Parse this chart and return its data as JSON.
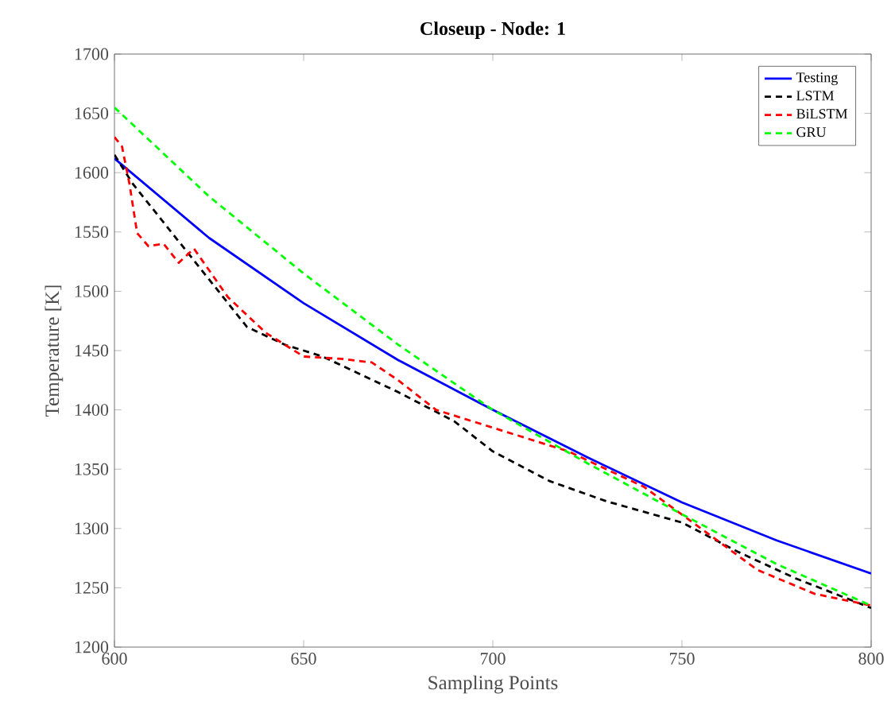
{
  "chart_data": {
    "type": "line",
    "title": "Closeup - Node: 1",
    "xlabel": "Sampling Points",
    "ylabel": "Temperature [K]",
    "xlim": [
      600,
      800
    ],
    "ylim": [
      1200,
      1700
    ],
    "xticks": [
      600,
      650,
      700,
      750,
      800
    ],
    "yticks": [
      1200,
      1250,
      1300,
      1350,
      1400,
      1450,
      1500,
      1550,
      1600,
      1650,
      1700
    ],
    "legend": "top right",
    "grid": false,
    "series": [
      {
        "name": "Testing",
        "color": "#0000ff",
        "line_style": "solid",
        "x": [
          600,
          625,
          650,
          675,
          700,
          725,
          750,
          775,
          800
        ],
        "values": [
          1612,
          1545,
          1490,
          1442,
          1400,
          1360,
          1322,
          1290,
          1262
        ]
      },
      {
        "name": "LSTM",
        "color": "#000000",
        "line_style": "dashed",
        "x": [
          600,
          605,
          615,
          625,
          635,
          645,
          655,
          665,
          675,
          690,
          700,
          715,
          730,
          750,
          765,
          780,
          800
        ],
        "values": [
          1615,
          1590,
          1550,
          1510,
          1470,
          1455,
          1445,
          1430,
          1415,
          1390,
          1365,
          1340,
          1323,
          1305,
          1280,
          1258,
          1233
        ]
      },
      {
        "name": "BiLSTM",
        "color": "#ff0000",
        "line_style": "dashed",
        "x": [
          600,
          602,
          604,
          606,
          609,
          613,
          617,
          621,
          630,
          640,
          650,
          660,
          668,
          675,
          685,
          700,
          720,
          740,
          755,
          770,
          785,
          800
        ],
        "values": [
          1630,
          1622,
          1590,
          1549,
          1538,
          1540,
          1524,
          1536,
          1495,
          1465,
          1445,
          1443,
          1440,
          1425,
          1400,
          1385,
          1365,
          1335,
          1300,
          1265,
          1245,
          1235
        ]
      },
      {
        "name": "GRU",
        "color": "#00ff00",
        "line_style": "dashed",
        "x": [
          600,
          625,
          650,
          675,
          700,
          725,
          750,
          775,
          800
        ],
        "values": [
          1655,
          1580,
          1515,
          1455,
          1400,
          1355,
          1312,
          1270,
          1235
        ]
      }
    ]
  }
}
